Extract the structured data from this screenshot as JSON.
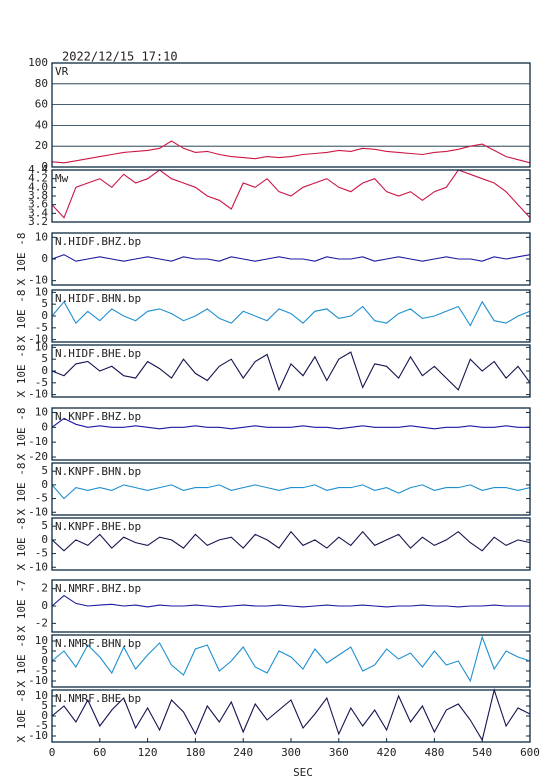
{
  "chart_data": [
    {
      "type": "line",
      "title": "2022/12/15 17:10",
      "label": "VR",
      "color": "#cc1744",
      "grid": true,
      "x": [
        0,
        15,
        30,
        45,
        60,
        75,
        90,
        105,
        120,
        135,
        150,
        165,
        180,
        195,
        210,
        225,
        240,
        255,
        270,
        285,
        300,
        315,
        330,
        345,
        360,
        375,
        390,
        405,
        420,
        435,
        450,
        465,
        480,
        495,
        510,
        525,
        540,
        555,
        570,
        585,
        600
      ],
      "values": [
        5,
        4,
        6,
        8,
        10,
        12,
        14,
        15,
        16,
        18,
        25,
        18,
        14,
        15,
        12,
        10,
        9,
        8,
        10,
        9,
        10,
        12,
        13,
        14,
        16,
        15,
        18,
        17,
        15,
        14,
        13,
        12,
        14,
        15,
        17,
        20,
        22,
        16,
        10,
        7,
        4
      ],
      "xlim": [
        0,
        600
      ],
      "ylim": [
        0,
        100
      ],
      "yticks": [
        0,
        20,
        40,
        60,
        80,
        100
      ]
    },
    {
      "type": "line",
      "label": "Mw",
      "color": "#cc1744",
      "x": [
        0,
        15,
        30,
        45,
        60,
        75,
        90,
        105,
        120,
        135,
        150,
        165,
        180,
        195,
        210,
        225,
        240,
        255,
        270,
        285,
        300,
        315,
        330,
        345,
        360,
        375,
        390,
        405,
        420,
        435,
        450,
        465,
        480,
        495,
        510,
        525,
        540,
        555,
        570,
        585,
        600
      ],
      "values": [
        3.6,
        3.3,
        4.0,
        4.1,
        4.2,
        4.0,
        4.3,
        4.1,
        4.2,
        4.4,
        4.2,
        4.1,
        4.0,
        3.8,
        3.7,
        3.5,
        4.1,
        4.0,
        4.2,
        3.9,
        3.8,
        4.0,
        4.1,
        4.2,
        4.0,
        3.9,
        4.1,
        4.2,
        3.9,
        3.8,
        3.9,
        3.7,
        3.9,
        4.0,
        4.4,
        4.3,
        4.2,
        4.1,
        3.9,
        3.6,
        3.3
      ],
      "xlim": [
        0,
        600
      ],
      "ylim": [
        3.2,
        4.4
      ],
      "yticks": [
        3.2,
        3.4,
        3.6,
        3.8,
        {
          "value": 4,
          "label": "4.0"
        },
        4.2,
        4.4
      ]
    },
    {
      "type": "line",
      "label": "N.HIDF.BHZ.bp",
      "ylabel": "X 10E -8",
      "color": "#1a1aa0",
      "x": [
        0,
        15,
        30,
        45,
        60,
        75,
        90,
        105,
        120,
        135,
        150,
        165,
        180,
        195,
        210,
        225,
        240,
        255,
        270,
        285,
        300,
        315,
        330,
        345,
        360,
        375,
        390,
        405,
        420,
        435,
        450,
        465,
        480,
        495,
        510,
        525,
        540,
        555,
        570,
        585,
        600
      ],
      "values": [
        0,
        2,
        -1,
        0,
        1,
        0,
        -1,
        0,
        1,
        0,
        -1,
        1,
        0,
        0,
        -1,
        1,
        0,
        -1,
        0,
        1,
        0,
        0,
        -1,
        1,
        0,
        0,
        1,
        -1,
        0,
        1,
        0,
        -1,
        0,
        1,
        0,
        0,
        -1,
        1,
        0,
        1,
        2
      ],
      "xlim": [
        0,
        600
      ],
      "ylim": [
        -12,
        12
      ],
      "yticks": [
        -10,
        0,
        10
      ]
    },
    {
      "type": "line",
      "label": "N.HIDF.BHN.bp",
      "ylabel": "X 10E -8",
      "color": "#1e8fd0",
      "x": [
        0,
        15,
        30,
        45,
        60,
        75,
        90,
        105,
        120,
        135,
        150,
        165,
        180,
        195,
        210,
        225,
        240,
        255,
        270,
        285,
        300,
        315,
        330,
        345,
        360,
        375,
        390,
        405,
        420,
        435,
        450,
        465,
        480,
        495,
        510,
        525,
        540,
        555,
        570,
        585,
        600
      ],
      "values": [
        0,
        6,
        -3,
        2,
        -2,
        3,
        0,
        -2,
        2,
        3,
        1,
        -2,
        0,
        3,
        -1,
        -3,
        2,
        0,
        -2,
        3,
        1,
        -3,
        2,
        3,
        -1,
        0,
        4,
        -2,
        -3,
        1,
        3,
        -1,
        0,
        2,
        4,
        -4,
        6,
        -2,
        -3,
        0,
        2
      ],
      "xlim": [
        0,
        600
      ],
      "ylim": [
        -11,
        11
      ],
      "yticks": [
        -10,
        -5,
        0,
        5,
        10
      ]
    },
    {
      "type": "line",
      "label": "N.HIDF.BHE.bp",
      "ylabel": "X 10E -8",
      "color": "#141450",
      "x": [
        0,
        15,
        30,
        45,
        60,
        75,
        90,
        105,
        120,
        135,
        150,
        165,
        180,
        195,
        210,
        225,
        240,
        255,
        270,
        285,
        300,
        315,
        330,
        345,
        360,
        375,
        390,
        405,
        420,
        435,
        450,
        465,
        480,
        495,
        510,
        525,
        540,
        555,
        570,
        585,
        600
      ],
      "values": [
        0,
        -2,
        3,
        4,
        0,
        2,
        -2,
        -3,
        4,
        1,
        -3,
        5,
        -1,
        -4,
        2,
        5,
        -3,
        4,
        7,
        -8,
        3,
        -2,
        6,
        -4,
        5,
        8,
        -7,
        3,
        2,
        -3,
        6,
        -2,
        2,
        -3,
        -8,
        5,
        0,
        4,
        -3,
        2,
        -5
      ],
      "xlim": [
        0,
        600
      ],
      "ylim": [
        -11,
        11
      ],
      "yticks": [
        -10,
        -5,
        0,
        5,
        10
      ]
    },
    {
      "type": "line",
      "label": "N.KNPF.BHZ.bp",
      "ylabel": "X 10E -8",
      "color": "#1a1aa0",
      "x": [
        0,
        15,
        30,
        45,
        60,
        75,
        90,
        105,
        120,
        135,
        150,
        165,
        180,
        195,
        210,
        225,
        240,
        255,
        270,
        285,
        300,
        315,
        330,
        345,
        360,
        375,
        390,
        405,
        420,
        435,
        450,
        465,
        480,
        495,
        510,
        525,
        540,
        555,
        570,
        585,
        600
      ],
      "values": [
        0,
        6,
        2,
        0,
        1,
        0,
        0,
        1,
        0,
        -1,
        0,
        0,
        1,
        0,
        0,
        -1,
        0,
        1,
        0,
        0,
        0,
        1,
        0,
        0,
        -1,
        0,
        1,
        0,
        0,
        0,
        1,
        0,
        -1,
        0,
        0,
        1,
        0,
        0,
        1,
        0,
        0
      ],
      "xlim": [
        0,
        600
      ],
      "ylim": [
        -22,
        13
      ],
      "yticks": [
        -20,
        -10,
        0,
        10
      ]
    },
    {
      "type": "line",
      "label": "N.KNPF.BHN.bp",
      "ylabel": "X 10E -8",
      "color": "#1e8fd0",
      "x": [
        0,
        15,
        30,
        45,
        60,
        75,
        90,
        105,
        120,
        135,
        150,
        165,
        180,
        195,
        210,
        225,
        240,
        255,
        270,
        285,
        300,
        315,
        330,
        345,
        360,
        375,
        390,
        405,
        420,
        435,
        450,
        465,
        480,
        495,
        510,
        525,
        540,
        555,
        570,
        585,
        600
      ],
      "values": [
        0,
        -5,
        -1,
        -2,
        -1,
        -2,
        0,
        -1,
        -2,
        -1,
        0,
        -2,
        -1,
        -1,
        0,
        -2,
        -1,
        0,
        -1,
        -2,
        -1,
        -1,
        0,
        -2,
        -1,
        -1,
        0,
        -2,
        -1,
        -3,
        -1,
        0,
        -2,
        -1,
        -1,
        0,
        -2,
        -1,
        -1,
        -2,
        -1
      ],
      "xlim": [
        0,
        600
      ],
      "ylim": [
        -11,
        8
      ],
      "yticks": [
        -10,
        -5,
        0,
        5
      ]
    },
    {
      "type": "line",
      "label": "N.KNPF.BHE.bp",
      "ylabel": "X 10E -8",
      "color": "#141450",
      "x": [
        0,
        15,
        30,
        45,
        60,
        75,
        90,
        105,
        120,
        135,
        150,
        165,
        180,
        195,
        210,
        225,
        240,
        255,
        270,
        285,
        300,
        315,
        330,
        345,
        360,
        375,
        390,
        405,
        420,
        435,
        450,
        465,
        480,
        495,
        510,
        525,
        540,
        555,
        570,
        585,
        600
      ],
      "values": [
        0,
        -4,
        0,
        -2,
        2,
        -3,
        1,
        -1,
        -2,
        1,
        0,
        -3,
        2,
        -2,
        0,
        1,
        -3,
        2,
        0,
        -3,
        3,
        -2,
        0,
        -3,
        1,
        -2,
        3,
        -2,
        0,
        2,
        -3,
        1,
        -2,
        0,
        3,
        -1,
        -4,
        1,
        -2,
        0,
        -1
      ],
      "xlim": [
        0,
        600
      ],
      "ylim": [
        -11,
        8
      ],
      "yticks": [
        -10,
        -5,
        0,
        5
      ]
    },
    {
      "type": "line",
      "label": "N.NMRF.BHZ.bp",
      "ylabel": "X 10E -7",
      "color": "#1a1aa0",
      "x": [
        0,
        15,
        30,
        45,
        60,
        75,
        90,
        105,
        120,
        135,
        150,
        165,
        180,
        195,
        210,
        225,
        240,
        255,
        270,
        285,
        300,
        315,
        330,
        345,
        360,
        375,
        390,
        405,
        420,
        435,
        450,
        465,
        480,
        495,
        510,
        525,
        540,
        555,
        570,
        585,
        600
      ],
      "values": [
        0,
        1.2,
        0.3,
        0,
        0.1,
        0.2,
        0,
        0.1,
        -0.1,
        0.1,
        0,
        0,
        0.1,
        0,
        -0.1,
        0,
        0.1,
        0,
        0,
        0.1,
        0,
        -0.1,
        0,
        0.1,
        0,
        0,
        0.1,
        0,
        -0.1,
        0,
        0,
        0.1,
        0,
        0,
        -0.1,
        0,
        0,
        0.1,
        0,
        0,
        0
      ],
      "xlim": [
        0,
        600
      ],
      "ylim": [
        -3,
        3
      ],
      "yticks": [
        -2,
        0,
        2
      ]
    },
    {
      "type": "line",
      "label": "N.NMRF.BHN.bp",
      "ylabel": "X 10E -8",
      "color": "#1e8fd0",
      "x": [
        0,
        15,
        30,
        45,
        60,
        75,
        90,
        105,
        120,
        135,
        150,
        165,
        180,
        195,
        210,
        225,
        240,
        255,
        270,
        285,
        300,
        315,
        330,
        345,
        360,
        375,
        390,
        405,
        420,
        435,
        450,
        465,
        480,
        495,
        510,
        525,
        540,
        555,
        570,
        585,
        600
      ],
      "values": [
        0,
        5,
        -3,
        8,
        2,
        -6,
        7,
        -4,
        3,
        9,
        -2,
        -7,
        6,
        8,
        -5,
        0,
        7,
        -3,
        -6,
        5,
        2,
        -4,
        6,
        -1,
        3,
        7,
        -5,
        -2,
        6,
        1,
        4,
        -3,
        5,
        -2,
        0,
        -10,
        12,
        -4,
        5,
        2,
        0
      ],
      "xlim": [
        0,
        600
      ],
      "ylim": [
        -13,
        13
      ],
      "yticks": [
        -10,
        -5,
        0,
        5,
        10
      ]
    },
    {
      "type": "line",
      "label": "N.NMRF.BHE.bp",
      "ylabel": "X 10E -8",
      "color": "#141450",
      "xlabel": "SEC",
      "x": [
        0,
        15,
        30,
        45,
        60,
        75,
        90,
        105,
        120,
        135,
        150,
        165,
        180,
        195,
        210,
        225,
        240,
        255,
        270,
        285,
        300,
        315,
        330,
        345,
        360,
        375,
        390,
        405,
        420,
        435,
        450,
        465,
        480,
        495,
        510,
        525,
        540,
        555,
        570,
        585,
        600
      ],
      "values": [
        0,
        5,
        -3,
        8,
        -5,
        3,
        9,
        -6,
        4,
        -7,
        8,
        2,
        -9,
        5,
        -3,
        7,
        -8,
        6,
        -2,
        3,
        8,
        -6,
        1,
        9,
        -9,
        4,
        -5,
        3,
        -7,
        10,
        -3,
        5,
        -8,
        3,
        6,
        -2,
        -12,
        13,
        -5,
        4,
        1
      ],
      "xlim": [
        0,
        600
      ],
      "ylim": [
        -13,
        13
      ],
      "yticks": [
        -10,
        -5,
        0,
        5,
        10
      ],
      "xticks": [
        0,
        60,
        120,
        180,
        240,
        300,
        360,
        420,
        480,
        540,
        600
      ]
    }
  ]
}
